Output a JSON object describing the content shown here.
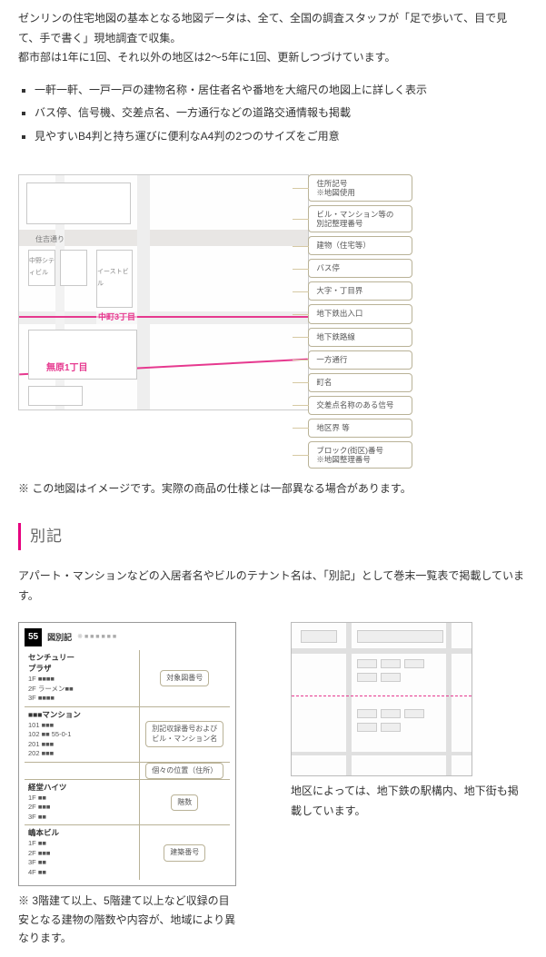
{
  "intro": {
    "line1": "ゼンリンの住宅地図の基本となる地図データは、全て、全国の調査スタッフが「足で歩いて、目で見て、手で書く」現地調査で収集。",
    "line2": "都市部は1年に1回、それ以外の地区は2〜5年に1回、更新しつづけています。"
  },
  "features": [
    "一軒一軒、一戸一戸の建物名称・居住者名や番地を大縮尺の地図上に詳しく表示",
    "バス停、信号機、交差点名、一方通行などの道路交通情報も掲載",
    "見やすいB4判と持ち運びに便利なA4判の2つのサイズをご用意"
  ],
  "sample_map": {
    "street_label": "住吉通り",
    "block_building": "イーストビル",
    "block_building2": "中野シティビル",
    "district_a": "中町3丁目",
    "district_b": "無原1丁目",
    "legend": [
      "住所記号\n※地図使用",
      "ビル・マンション等の\n別記整理番号",
      "建物（住宅等）",
      "バス停",
      "大字・丁目界",
      "地下鉄出入口",
      "地下鉄路線",
      "一方通行",
      "町名",
      "交差点名称のある信号",
      "地区界 等",
      "ブロック(街区)番号\n※地図整理番号"
    ],
    "caption": "※ この地図はイメージです。実際の商品の仕様とは一部異なる場合があります。"
  },
  "bekki": {
    "heading": "別記",
    "desc": "アパート・マンションなどの入居者名やビルのテナント名は、「別記」として巻末一覧表で掲載しています。",
    "code": "55",
    "title": "図別記",
    "sub": "※ ■ ■ ■ ■ ■ ■",
    "rows": [
      {
        "left_big": "センチュリー\nプラザ",
        "left_small": "1F ■■■■\n2F ラーメン■■\n3F ■■■■",
        "right": "対象図番号"
      },
      {
        "left_big": "■■■マンション",
        "left_small": "101 ■■■\n102 ■■  55-0-1\n201 ■■■\n202 ■■■",
        "right": "別記収録番号および\nビル・マンション名"
      },
      {
        "left_big": "",
        "left_small": "",
        "right": "個々の位置（住所）"
      },
      {
        "left_big": "経堂ハイツ",
        "left_small": "1F ■■\n2F ■■■\n3F ■■",
        "right": "階数"
      },
      {
        "left_big": "嶋本ビル",
        "left_small": "1F ■■\n2F ■■■\n3F ■■\n4F ■■",
        "right": "建築番号"
      }
    ],
    "caption": "※ 3階建て以上、5階建て以上など収録の目安となる建物の階数や内容が、地域により異なります。"
  },
  "subway": {
    "caption": "地区によっては、地下鉄の駅構内、地下街も掲載しています。"
  },
  "colors": {
    "accent": "#e6007e",
    "pink_line": "#e6398f",
    "legend_border": "#b9b297"
  }
}
